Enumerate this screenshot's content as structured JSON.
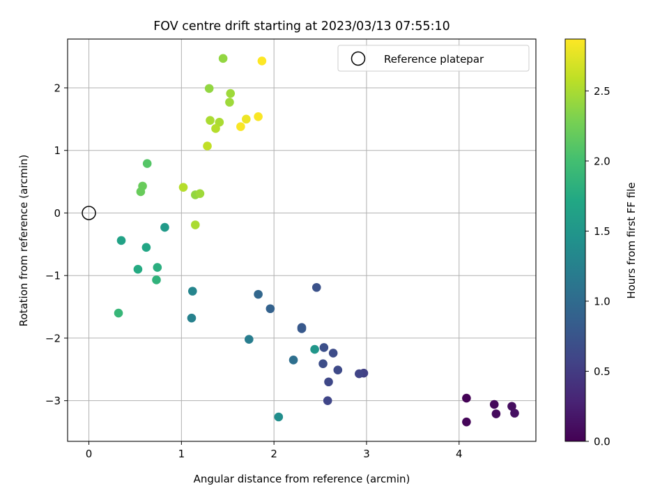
{
  "chart_data": {
    "type": "scatter",
    "title": "FOV centre drift starting at 2023/03/13 07:55:10",
    "xlabel": "Angular distance from reference (arcmin)",
    "ylabel": "Rotation from reference (arcmin)",
    "xlim": [
      -0.23,
      4.83
    ],
    "ylim": [
      -3.65,
      2.78
    ],
    "xticks": [
      0,
      1,
      2,
      3,
      4
    ],
    "xtick_labels": [
      "0",
      "1",
      "2",
      "3",
      "4"
    ],
    "yticks": [
      -3,
      -2,
      -1,
      0,
      1,
      2
    ],
    "ytick_labels": [
      "−3",
      "−2",
      "−1",
      "0",
      "1",
      "2"
    ],
    "grid": true,
    "legend": {
      "position": "top-right",
      "entries": [
        "Reference platepar"
      ]
    },
    "reference_point": {
      "label": "Reference platepar",
      "x": 0,
      "y": 0,
      "marker": "open-circle"
    },
    "colorbar": {
      "label": "Hours from first FF file",
      "range": [
        0.0,
        2.87
      ],
      "ticks": [
        0.0,
        0.5,
        1.0,
        1.5,
        2.0,
        2.5
      ],
      "tick_labels": [
        "0.0",
        "0.5",
        "1.0",
        "1.5",
        "2.0",
        "2.5"
      ],
      "colormap": "viridis"
    },
    "series": [
      {
        "points": [
          {
            "x": 4.08,
            "y": -2.96,
            "c": 0.02
          },
          {
            "x": 4.08,
            "y": -3.34,
            "c": 0.04
          },
          {
            "x": 4.38,
            "y": -3.06,
            "c": 0.06
          },
          {
            "x": 4.4,
            "y": -3.21,
            "c": 0.08
          },
          {
            "x": 4.57,
            "y": -3.09,
            "c": 0.1
          },
          {
            "x": 4.6,
            "y": -3.2,
            "c": 0.12
          },
          {
            "x": 2.97,
            "y": -2.56,
            "c": 0.55
          },
          {
            "x": 2.92,
            "y": -2.57,
            "c": 0.58
          },
          {
            "x": 2.58,
            "y": -3.0,
            "c": 0.6
          },
          {
            "x": 2.59,
            "y": -2.7,
            "c": 0.62
          },
          {
            "x": 2.69,
            "y": -2.51,
            "c": 0.64
          },
          {
            "x": 2.64,
            "y": -2.24,
            "c": 0.66
          },
          {
            "x": 2.53,
            "y": -2.41,
            "c": 0.68
          },
          {
            "x": 2.54,
            "y": -2.15,
            "c": 0.7
          },
          {
            "x": 2.46,
            "y": -1.19,
            "c": 0.72
          },
          {
            "x": 2.3,
            "y": -1.83,
            "c": 0.78
          },
          {
            "x": 2.3,
            "y": -1.85,
            "c": 0.8
          },
          {
            "x": 1.96,
            "y": -1.53,
            "c": 0.9
          },
          {
            "x": 1.83,
            "y": -1.3,
            "c": 0.95
          },
          {
            "x": 2.21,
            "y": -2.35,
            "c": 1.05
          },
          {
            "x": 1.73,
            "y": -2.02,
            "c": 1.2
          },
          {
            "x": 1.11,
            "y": -1.68,
            "c": 1.25
          },
          {
            "x": 1.12,
            "y": -1.25,
            "c": 1.3
          },
          {
            "x": 2.05,
            "y": -3.26,
            "c": 1.4
          },
          {
            "x": 2.44,
            "y": -2.18,
            "c": 1.5
          },
          {
            "x": 0.82,
            "y": -0.23,
            "c": 1.55
          },
          {
            "x": 0.35,
            "y": -0.44,
            "c": 1.65
          },
          {
            "x": 0.62,
            "y": -0.55,
            "c": 1.7
          },
          {
            "x": 0.53,
            "y": -0.9,
            "c": 1.75
          },
          {
            "x": 0.74,
            "y": -0.87,
            "c": 1.8
          },
          {
            "x": 0.73,
            "y": -1.07,
            "c": 1.85
          },
          {
            "x": 0.32,
            "y": -1.6,
            "c": 1.9
          },
          {
            "x": 0.63,
            "y": 0.79,
            "c": 2.1
          },
          {
            "x": 0.58,
            "y": 0.43,
            "c": 2.2
          },
          {
            "x": 0.56,
            "y": 0.34,
            "c": 2.2
          },
          {
            "x": 1.15,
            "y": 0.29,
            "c": 2.4
          },
          {
            "x": 1.2,
            "y": 0.31,
            "c": 2.45
          },
          {
            "x": 1.15,
            "y": -0.19,
            "c": 2.5
          },
          {
            "x": 1.02,
            "y": 0.41,
            "c": 2.55
          },
          {
            "x": 1.45,
            "y": 2.47,
            "c": 2.4
          },
          {
            "x": 1.3,
            "y": 1.99,
            "c": 2.4
          },
          {
            "x": 1.53,
            "y": 1.91,
            "c": 2.45
          },
          {
            "x": 1.52,
            "y": 1.77,
            "c": 2.45
          },
          {
            "x": 1.31,
            "y": 1.48,
            "c": 2.5
          },
          {
            "x": 1.41,
            "y": 1.45,
            "c": 2.5
          },
          {
            "x": 1.37,
            "y": 1.35,
            "c": 2.55
          },
          {
            "x": 1.28,
            "y": 1.07,
            "c": 2.6
          },
          {
            "x": 1.7,
            "y": 1.5,
            "c": 2.8
          },
          {
            "x": 1.64,
            "y": 1.38,
            "c": 2.85
          },
          {
            "x": 1.83,
            "y": 1.54,
            "c": 2.85
          },
          {
            "x": 1.87,
            "y": 2.43,
            "c": 2.87
          }
        ]
      }
    ]
  }
}
